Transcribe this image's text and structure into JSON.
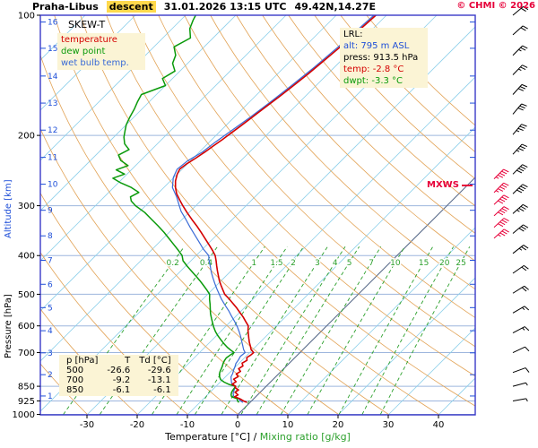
{
  "window": {
    "title_station": "Praha-Libus",
    "title_mode": "descent",
    "title_datetime": "31.01.2026 13:15 UTC",
    "title_coords": "49.42N,14.27E",
    "copyright": "© CHMI © 2026"
  },
  "legend": {
    "chart_type": "SKEW-T",
    "items": [
      {
        "label": "temperature",
        "color": "#d40000"
      },
      {
        "label": "dew point",
        "color": "#0a9a0a"
      },
      {
        "label": "wet bulb temp.",
        "color": "#3a6bd6"
      }
    ]
  },
  "lrl_box": {
    "heading": "LRL:",
    "alt_label": "alt: 795 m ASL",
    "press_label": "press: 913.5 hPa",
    "temp_label": "temp: -2.8 °C",
    "dwpt_label": "dwpt: -3.3 °C",
    "colors": {
      "alt": "#1f4fd8",
      "press": "#000000",
      "temp": "#d40000",
      "dwpt": "#0a9a0a"
    }
  },
  "mxws_label": "MXWS",
  "axes": {
    "pressure_label": "Pressure [hPa]",
    "altitude_label": "Altitude [km]",
    "x_label_temp": "Temperature [°C]",
    "x_label_sep": " / ",
    "x_label_mix": "Mixing ratio [g/kg]",
    "pressure_ticks": [
      100,
      200,
      300,
      400,
      500,
      600,
      700,
      850,
      925,
      1000
    ],
    "temp_ticks": [
      -30,
      -20,
      -10,
      0,
      10,
      20,
      30,
      40
    ],
    "altitude_ticks": [
      {
        "km": 1,
        "p": 899
      },
      {
        "km": 2,
        "p": 795
      },
      {
        "km": 3,
        "p": 701
      },
      {
        "km": 4,
        "p": 617
      },
      {
        "km": 5,
        "p": 540
      },
      {
        "km": 6,
        "p": 472
      },
      {
        "km": 7,
        "p": 411
      },
      {
        "km": 8,
        "p": 357
      },
      {
        "km": 9,
        "p": 308
      },
      {
        "km": 10,
        "p": 265
      },
      {
        "km": 11,
        "p": 227
      },
      {
        "km": 12,
        "p": 194
      },
      {
        "km": 13,
        "p": 166
      },
      {
        "km": 14,
        "p": 142
      },
      {
        "km": 15,
        "p": 121
      },
      {
        "km": 16,
        "p": 104
      }
    ]
  },
  "table": {
    "header": [
      "p [hPa]",
      "T",
      "Td [°C]"
    ],
    "rows": [
      [
        "500",
        "-26.6",
        "-29.6"
      ],
      [
        "700",
        "-9.2",
        "-13.1"
      ],
      [
        "850",
        "-6.1",
        "-6.1"
      ]
    ]
  },
  "chart_data": {
    "type": "line",
    "variant": "skew-t log-p thermodynamic sounding",
    "title": "Praha-Libus descent 31.01.2026 13:15 UTC 49.42N,14.27E",
    "x_axis": {
      "label": "Temperature [°C] / Mixing ratio [g/kg]",
      "ticks": [
        -30,
        -20,
        -10,
        0,
        10,
        20,
        30,
        40
      ],
      "unit": "degC"
    },
    "y_axis": {
      "label": "Pressure [hPa]",
      "scale": "log",
      "range": [
        100,
        1000
      ],
      "ticks": [
        100,
        200,
        300,
        400,
        500,
        600,
        700,
        850,
        925,
        1000
      ]
    },
    "isotherms": {
      "start": -120,
      "end": 40,
      "step": 10,
      "color": "#8fd0ea",
      "zero_color": "#5a6b8a"
    },
    "dry_adiabats": {
      "start": -30,
      "end": 150,
      "step": 10,
      "color": "#e2a356"
    },
    "isobar_color": "#9db6dd",
    "frame_color": "#3a3ac8",
    "mixing_ratio_lines": {
      "values": [
        0.2,
        0.4,
        1,
        1.5,
        2,
        3,
        4,
        5,
        7,
        10,
        15,
        20,
        25
      ],
      "color": "#2ca02c"
    },
    "key_levels": [
      {
        "p": 913.5,
        "T": -2.8,
        "Td": -3.3,
        "note": "LRL, alt 795 m ASL"
      },
      {
        "p": 850,
        "T": -6.1,
        "Td": -6.1
      },
      {
        "p": 700,
        "T": -9.2,
        "Td": -13.1
      },
      {
        "p": 500,
        "T": -26.6,
        "Td": -29.6
      }
    ],
    "series": [
      {
        "name": "wet bulb temp",
        "color": "#3a6bd6",
        "width": 1.2,
        "points": [
          [
            933,
            -1.4
          ],
          [
            925,
            -2.2
          ],
          [
            913.5,
            -3.0
          ],
          [
            900,
            -4.5
          ],
          [
            885,
            -5.2
          ],
          [
            870,
            -5.6
          ],
          [
            850,
            -6.1
          ],
          [
            835,
            -7.5
          ],
          [
            820,
            -8.2
          ],
          [
            805,
            -8.9
          ],
          [
            790,
            -9.2
          ],
          [
            775,
            -9.7
          ],
          [
            760,
            -10.1
          ],
          [
            745,
            -10.6
          ],
          [
            730,
            -10.8
          ],
          [
            715,
            -11.1
          ],
          [
            700,
            -10.9
          ],
          [
            688,
            -11.8
          ],
          [
            672,
            -12.8
          ],
          [
            655,
            -13.9
          ],
          [
            638,
            -15.0
          ],
          [
            620,
            -16.3
          ],
          [
            602,
            -17.7
          ],
          [
            585,
            -19.2
          ],
          [
            567,
            -20.9
          ],
          [
            550,
            -22.5
          ],
          [
            532,
            -24.4
          ],
          [
            515,
            -26.2
          ],
          [
            500,
            -27.7
          ],
          [
            485,
            -29.2
          ],
          [
            470,
            -30.7
          ],
          [
            455,
            -32.2
          ],
          [
            440,
            -33.7
          ],
          [
            425,
            -35.1
          ],
          [
            410,
            -36.6
          ],
          [
            400,
            -37.5
          ],
          [
            385,
            -39.9
          ],
          [
            370,
            -42.1
          ],
          [
            355,
            -44.4
          ],
          [
            340,
            -46.8
          ],
          [
            325,
            -49.2
          ],
          [
            310,
            -51.8
          ],
          [
            300,
            -53.3
          ],
          [
            285,
            -55.6
          ],
          [
            270,
            -58.3
          ],
          [
            255,
            -60.1
          ],
          [
            243,
            -61.0
          ],
          [
            232,
            -60.6
          ],
          [
            220,
            -59.4
          ],
          [
            208,
            -58.8
          ],
          [
            195,
            -57.9
          ],
          [
            180,
            -56.8
          ],
          [
            165,
            -55.8
          ],
          [
            150,
            -54.9
          ],
          [
            135,
            -54.0
          ],
          [
            120,
            -53.3
          ],
          [
            110,
            -52.9
          ],
          [
            100,
            -52.5
          ]
        ]
      },
      {
        "name": "dew point",
        "color": "#0a9a0a",
        "width": 1.5,
        "points": [
          [
            933,
            -2.2
          ],
          [
            925,
            -2.8
          ],
          [
            913.5,
            -3.3
          ],
          [
            903,
            -4.8
          ],
          [
            893,
            -5.3
          ],
          [
            880,
            -5.7
          ],
          [
            868,
            -5.9
          ],
          [
            858,
            -6.0
          ],
          [
            850,
            -6.1
          ],
          [
            841,
            -7.8
          ],
          [
            830,
            -9.2
          ],
          [
            818,
            -10.4
          ],
          [
            806,
            -11.1
          ],
          [
            794,
            -11.7
          ],
          [
            782,
            -12.1
          ],
          [
            770,
            -12.4
          ],
          [
            758,
            -12.7
          ],
          [
            746,
            -13.1
          ],
          [
            734,
            -13.4
          ],
          [
            722,
            -13.6
          ],
          [
            710,
            -13.4
          ],
          [
            700,
            -13.1
          ],
          [
            690,
            -14.3
          ],
          [
            678,
            -15.6
          ],
          [
            665,
            -16.9
          ],
          [
            650,
            -18.3
          ],
          [
            635,
            -19.7
          ],
          [
            620,
            -21.0
          ],
          [
            605,
            -22.2
          ],
          [
            590,
            -23.3
          ],
          [
            575,
            -24.4
          ],
          [
            560,
            -25.5
          ],
          [
            545,
            -26.5
          ],
          [
            530,
            -27.5
          ],
          [
            515,
            -28.6
          ],
          [
            500,
            -29.6
          ],
          [
            488,
            -31.0
          ],
          [
            475,
            -32.6
          ],
          [
            462,
            -34.3
          ],
          [
            450,
            -36.0
          ],
          [
            437,
            -37.9
          ],
          [
            425,
            -39.7
          ],
          [
            412,
            -41.6
          ],
          [
            400,
            -42.8
          ],
          [
            388,
            -44.6
          ],
          [
            375,
            -46.7
          ],
          [
            362,
            -48.9
          ],
          [
            350,
            -51.0
          ],
          [
            337,
            -53.5
          ],
          [
            325,
            -56.0
          ],
          [
            312,
            -58.8
          ],
          [
            300,
            -62.0
          ],
          [
            292,
            -63.8
          ],
          [
            285,
            -64.8
          ],
          [
            278,
            -64.0
          ],
          [
            270,
            -66.5
          ],
          [
            263,
            -69.5
          ],
          [
            256,
            -72.0
          ],
          [
            250,
            -70.5
          ],
          [
            244,
            -73.0
          ],
          [
            238,
            -71.5
          ],
          [
            231,
            -74.0
          ],
          [
            224,
            -75.5
          ],
          [
            217,
            -74.5
          ],
          [
            210,
            -76.5
          ],
          [
            202,
            -78.0
          ],
          [
            195,
            -79.0
          ],
          [
            188,
            -80.0
          ],
          [
            180,
            -80.8
          ],
          [
            172,
            -81.5
          ],
          [
            165,
            -82.3
          ],
          [
            158,
            -83.0
          ],
          [
            150,
            -80.0
          ],
          [
            144,
            -82.0
          ],
          [
            138,
            -81.0
          ],
          [
            132,
            -83.0
          ],
          [
            126,
            -84.0
          ],
          [
            120,
            -86.0
          ],
          [
            114,
            -84.5
          ],
          [
            108,
            -86.5
          ],
          [
            103,
            -87.5
          ],
          [
            100,
            -88.0
          ]
        ]
      },
      {
        "name": "temperature",
        "color": "#d40000",
        "width": 1.6,
        "points": [
          [
            933,
            -0.6
          ],
          [
            925,
            -1.6
          ],
          [
            913.5,
            -2.8
          ],
          [
            903,
            -4.2
          ],
          [
            893,
            -3.9
          ],
          [
            880,
            -5.0
          ],
          [
            868,
            -4.8
          ],
          [
            858,
            -5.8
          ],
          [
            850,
            -6.1
          ],
          [
            840,
            -7.2
          ],
          [
            828,
            -6.9
          ],
          [
            816,
            -7.9
          ],
          [
            804,
            -7.5
          ],
          [
            792,
            -8.4
          ],
          [
            780,
            -8.1
          ],
          [
            768,
            -9.0
          ],
          [
            756,
            -8.7
          ],
          [
            744,
            -9.4
          ],
          [
            732,
            -9.0
          ],
          [
            720,
            -9.6
          ],
          [
            710,
            -9.3
          ],
          [
            700,
            -9.2
          ],
          [
            688,
            -10.3
          ],
          [
            675,
            -11.1
          ],
          [
            660,
            -12.1
          ],
          [
            645,
            -13.0
          ],
          [
            630,
            -13.9
          ],
          [
            615,
            -14.8
          ],
          [
            600,
            -15.6
          ],
          [
            585,
            -17.0
          ],
          [
            570,
            -18.4
          ],
          [
            555,
            -20.0
          ],
          [
            540,
            -21.6
          ],
          [
            525,
            -23.4
          ],
          [
            512,
            -25.0
          ],
          [
            500,
            -26.6
          ],
          [
            488,
            -27.8
          ],
          [
            475,
            -29.1
          ],
          [
            462,
            -30.4
          ],
          [
            450,
            -31.5
          ],
          [
            437,
            -32.7
          ],
          [
            425,
            -33.8
          ],
          [
            412,
            -35.0
          ],
          [
            400,
            -36.2
          ],
          [
            388,
            -37.8
          ],
          [
            375,
            -39.7
          ],
          [
            362,
            -41.7
          ],
          [
            350,
            -43.6
          ],
          [
            337,
            -45.8
          ],
          [
            325,
            -48.0
          ],
          [
            312,
            -50.4
          ],
          [
            300,
            -52.6
          ],
          [
            290,
            -54.4
          ],
          [
            280,
            -56.2
          ],
          [
            270,
            -57.7
          ],
          [
            260,
            -59.0
          ],
          [
            250,
            -60.0
          ],
          [
            243,
            -60.5
          ],
          [
            236,
            -60.2
          ],
          [
            228,
            -59.5
          ],
          [
            220,
            -58.9
          ],
          [
            212,
            -58.4
          ],
          [
            205,
            -57.9
          ],
          [
            198,
            -57.5
          ],
          [
            190,
            -57.0
          ],
          [
            180,
            -56.4
          ],
          [
            170,
            -55.8
          ],
          [
            160,
            -55.1
          ],
          [
            150,
            -54.5
          ],
          [
            140,
            -53.9
          ],
          [
            130,
            -53.4
          ],
          [
            120,
            -52.9
          ],
          [
            110,
            -52.5
          ],
          [
            100,
            -52.1
          ]
        ]
      }
    ],
    "winds": [
      {
        "p": 100,
        "dir": 50,
        "kt": 20
      },
      {
        "p": 112,
        "dir": 48,
        "kt": 20
      },
      {
        "p": 126,
        "dir": 45,
        "kt": 25
      },
      {
        "p": 141,
        "dir": 44,
        "kt": 25
      },
      {
        "p": 158,
        "dir": 42,
        "kt": 30
      },
      {
        "p": 177,
        "dir": 40,
        "kt": 30
      },
      {
        "p": 199,
        "dir": 40,
        "kt": 35
      },
      {
        "p": 223,
        "dir": 42,
        "kt": 35
      },
      {
        "p": 250,
        "dir": 45,
        "kt": 40
      },
      {
        "p": 280,
        "dir": 46,
        "kt": 40
      },
      {
        "p": 314,
        "dir": 48,
        "kt": 35
      },
      {
        "p": 352,
        "dir": 50,
        "kt": 30
      },
      {
        "p": 395,
        "dir": 52,
        "kt": 25
      },
      {
        "p": 443,
        "dir": 55,
        "kt": 20
      },
      {
        "p": 497,
        "dir": 58,
        "kt": 20
      },
      {
        "p": 557,
        "dir": 60,
        "kt": 15
      },
      {
        "p": 625,
        "dir": 62,
        "kt": 15
      },
      {
        "p": 700,
        "dir": 65,
        "kt": 10
      },
      {
        "p": 785,
        "dir": 70,
        "kt": 10
      },
      {
        "p": 850,
        "dir": 75,
        "kt": 5
      },
      {
        "p": 925,
        "dir": 80,
        "kt": 5
      }
    ],
    "max_wind_barbs": [
      {
        "p": 257,
        "dir": 45,
        "kt": 45
      },
      {
        "p": 278,
        "dir": 45,
        "kt": 45
      },
      {
        "p": 298,
        "dir": 46,
        "kt": 40
      },
      {
        "p": 318,
        "dir": 47,
        "kt": 40
      },
      {
        "p": 340,
        "dir": 47,
        "kt": 40
      },
      {
        "p": 362,
        "dir": 48,
        "kt": 35
      }
    ],
    "wind_colors": {
      "normal": "#000000",
      "max_wind": "#e60039"
    }
  }
}
